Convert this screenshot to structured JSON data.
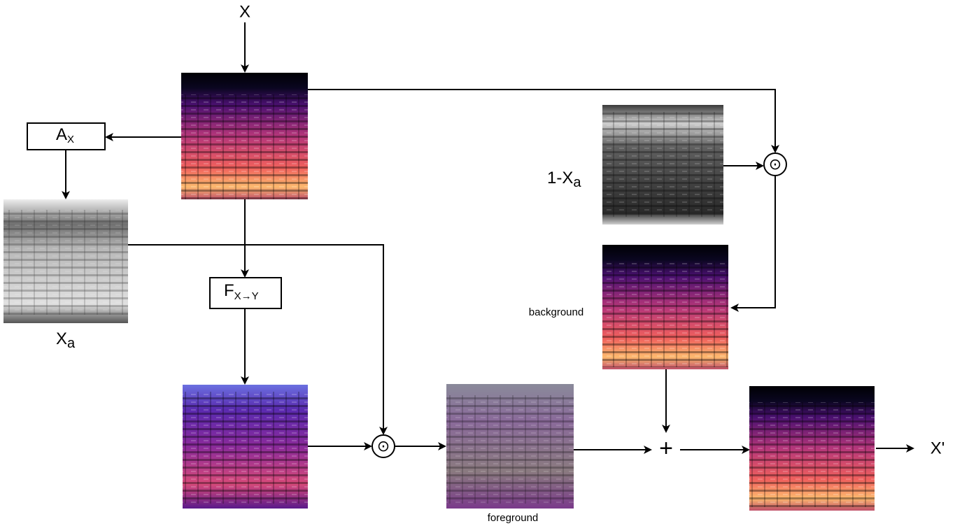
{
  "nodes": {
    "input": "X",
    "attention": {
      "main": "A",
      "sub": "X"
    },
    "attention_map": {
      "main": "X",
      "sub": "a"
    },
    "generator": {
      "main": "F",
      "sub": "X→Y"
    },
    "inverse_map": {
      "main": "1-X",
      "sub": "a"
    },
    "background": "background",
    "foreground": "foreground",
    "output": "X'",
    "plus": "+",
    "product_1": "⊙",
    "product_2": "⊙"
  }
}
